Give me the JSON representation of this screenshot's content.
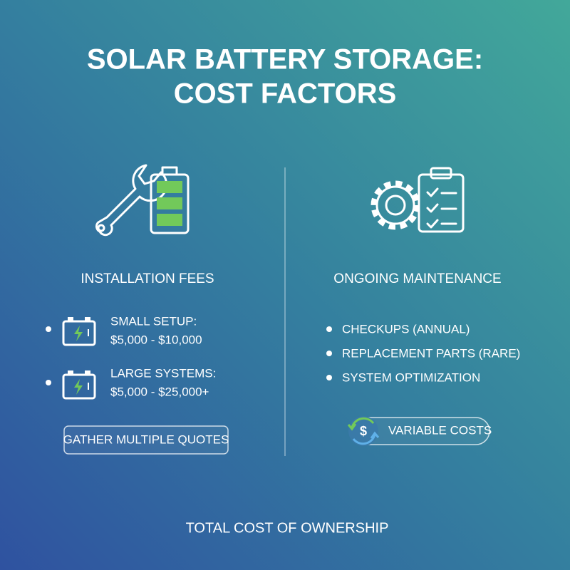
{
  "header": {
    "title": [
      "SOLAR BATTERY STORAGE:",
      "COST FACTORS"
    ]
  },
  "installation": {
    "heading": "INSTALLATION FEES",
    "items": [
      {
        "label": "SMALL SETUP:",
        "value": "$5,000 - $10,000"
      },
      {
        "label": "LARGE SYSTEMS:",
        "value": "$5,000 - $25,000+"
      }
    ],
    "button": "GATHER MULTIPLE QUOTES"
  },
  "maintenance": {
    "heading": "ONGOING MAINTENANCE",
    "items": [
      "CHECKUPS (ANNUAL)",
      "REPLACEMENT PARTS (RARE)",
      "SYSTEM OPTIMIZATION"
    ],
    "badge": "VARIABLE COSTS"
  },
  "footer": "TOTAL COST OF OWNERSHIP"
}
